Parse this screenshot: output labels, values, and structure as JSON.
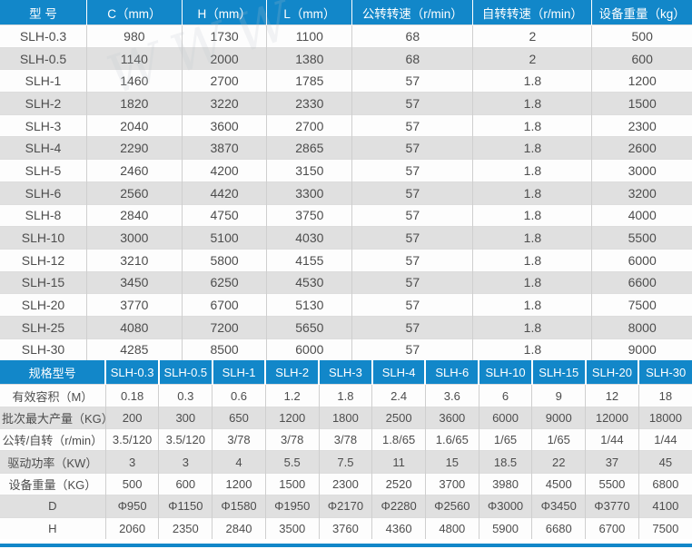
{
  "accent_color": "#1287c9",
  "zebra_color": "#e0e0e0",
  "watermark_text": "WWW",
  "table1": {
    "headers": [
      "型 号",
      "C（mm）",
      "H（mm）",
      "L（mm）",
      "公转转速（r/min）",
      "自转转速（r/min）",
      "设备重量（kg）"
    ],
    "rows": [
      [
        "SLH-0.3",
        "980",
        "1730",
        "1100",
        "68",
        "2",
        "500"
      ],
      [
        "SLH-0.5",
        "1140",
        "2000",
        "1380",
        "68",
        "2",
        "600"
      ],
      [
        "SLH-1",
        "1460",
        "2700",
        "1785",
        "57",
        "1.8",
        "1200"
      ],
      [
        "SLH-2",
        "1820",
        "3220",
        "2330",
        "57",
        "1.8",
        "1500"
      ],
      [
        "SLH-3",
        "2040",
        "3600",
        "2700",
        "57",
        "1.8",
        "2300"
      ],
      [
        "SLH-4",
        "2290",
        "3870",
        "2865",
        "57",
        "1.8",
        "2600"
      ],
      [
        "SLH-5",
        "2460",
        "4200",
        "3150",
        "57",
        "1.8",
        "3000"
      ],
      [
        "SLH-6",
        "2560",
        "4420",
        "3300",
        "57",
        "1.8",
        "3200"
      ],
      [
        "SLH-8",
        "2840",
        "4750",
        "3750",
        "57",
        "1.8",
        "4000"
      ],
      [
        "SLH-10",
        "3000",
        "5100",
        "4030",
        "57",
        "1.8",
        "5500"
      ],
      [
        "SLH-12",
        "3210",
        "5800",
        "4155",
        "57",
        "1.8",
        "6000"
      ],
      [
        "SLH-15",
        "3450",
        "6250",
        "4530",
        "57",
        "1.8",
        "6600"
      ],
      [
        "SLH-20",
        "3770",
        "6700",
        "5130",
        "57",
        "1.8",
        "7500"
      ],
      [
        "SLH-25",
        "4080",
        "7200",
        "5650",
        "57",
        "1.8",
        "8000"
      ],
      [
        "SLH-30",
        "4285",
        "8500",
        "6000",
        "57",
        "1.8",
        "9000"
      ]
    ]
  },
  "table2": {
    "headers": [
      "规格型号",
      "SLH-0.3",
      "SLH-0.5",
      "SLH-1",
      "SLH-2",
      "SLH-3",
      "SLH-4",
      "SLH-6",
      "SLH-10",
      "SLH-15",
      "SLH-20",
      "SLH-30"
    ],
    "rows": [
      [
        "有效容积（M）",
        "0.18",
        "0.3",
        "0.6",
        "1.2",
        "1.8",
        "2.4",
        "3.6",
        "6",
        "9",
        "12",
        "18"
      ],
      [
        "批次最大产量（KG）",
        "200",
        "300",
        "650",
        "1200",
        "1800",
        "2500",
        "3600",
        "6000",
        "9000",
        "12000",
        "18000"
      ],
      [
        "公转/自转（r/min）",
        "3.5/120",
        "3.5/120",
        "3/78",
        "3/78",
        "3/78",
        "1.8/65",
        "1.6/65",
        "1/65",
        "1/65",
        "1/44",
        "1/44"
      ],
      [
        "驱动功率（KW）",
        "3",
        "3",
        "4",
        "5.5",
        "7.5",
        "11",
        "15",
        "18.5",
        "22",
        "37",
        "45"
      ],
      [
        "设备重量（KG）",
        "500",
        "600",
        "1200",
        "1500",
        "2300",
        "2520",
        "3700",
        "3980",
        "4500",
        "5500",
        "6800"
      ],
      [
        "D",
        "Φ950",
        "Φ1150",
        "Φ1580",
        "Φ1950",
        "Φ2170",
        "Φ2280",
        "Φ2560",
        "Φ3000",
        "Φ3450",
        "Φ3770",
        "4100"
      ],
      [
        "H",
        "2060",
        "2350",
        "2840",
        "3500",
        "3760",
        "4360",
        "4800",
        "5900",
        "6680",
        "6700",
        "7500"
      ]
    ]
  }
}
